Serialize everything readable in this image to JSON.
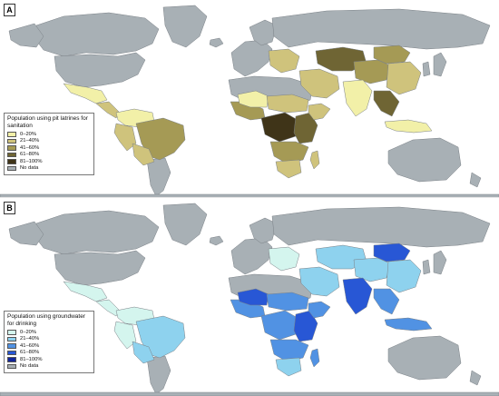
{
  "colors": {
    "ocean": "#ffffff",
    "no_data": "#a8b0b5",
    "outline": "#7a8086",
    "a": [
      "#f2f0a8",
      "#cfc37c",
      "#a59a55",
      "#6f6534",
      "#3f3418"
    ],
    "b": [
      "#d4f5ee",
      "#8ed2ee",
      "#5192e3",
      "#2857d5",
      "#12259a"
    ]
  },
  "panels": [
    {
      "tag": "A",
      "legend_title": "Population using pit latrines for sanitation",
      "legend_items": [
        "0–20%",
        "21–40%",
        "41–60%",
        "61–80%",
        "81–100%",
        "No data"
      ],
      "regions": [
        {
          "name": "mexico",
          "c": 0
        },
        {
          "name": "central-america",
          "c": 1
        },
        {
          "name": "colombia-venezuela",
          "c": 0
        },
        {
          "name": "peru-ecuador",
          "c": 1
        },
        {
          "name": "brazil",
          "c": 2
        },
        {
          "name": "bolivia-paraguay",
          "c": 1
        },
        {
          "name": "west-africa-coast",
          "c": 2
        },
        {
          "name": "west-africa-inland",
          "c": 0
        },
        {
          "name": "sahel",
          "c": 1
        },
        {
          "name": "central-africa",
          "c": 4
        },
        {
          "name": "east-africa",
          "c": 3
        },
        {
          "name": "horn-africa",
          "c": 1
        },
        {
          "name": "southern-africa",
          "c": 2
        },
        {
          "name": "south-africa",
          "c": 1
        },
        {
          "name": "madagascar",
          "c": 1
        },
        {
          "name": "middle-east",
          "c": 1
        },
        {
          "name": "central-asia",
          "c": 3
        },
        {
          "name": "mongolia",
          "c": 2
        },
        {
          "name": "china-west",
          "c": 2
        },
        {
          "name": "china-east",
          "c": 1
        },
        {
          "name": "india",
          "c": 0
        },
        {
          "name": "southeast-asia",
          "c": 3
        },
        {
          "name": "indonesia",
          "c": 0
        },
        {
          "name": "eastern-europe",
          "c": 1
        }
      ]
    },
    {
      "tag": "B",
      "legend_title": "Population using groundwater for drinking",
      "legend_items": [
        "0–20%",
        "21–40%",
        "41–60%",
        "61–80%",
        "81–100%",
        "No data"
      ],
      "regions": [
        {
          "name": "mexico",
          "c": 0
        },
        {
          "name": "central-america",
          "c": 0
        },
        {
          "name": "colombia-venezuela",
          "c": 0
        },
        {
          "name": "peru-ecuador",
          "c": 0
        },
        {
          "name": "brazil",
          "c": 1
        },
        {
          "name": "bolivia-paraguay",
          "c": 1
        },
        {
          "name": "west-africa-coast",
          "c": 2
        },
        {
          "name": "west-africa-inland",
          "c": 3
        },
        {
          "name": "sahel",
          "c": 2
        },
        {
          "name": "central-africa",
          "c": 2
        },
        {
          "name": "east-africa",
          "c": 3
        },
        {
          "name": "horn-africa",
          "c": 2
        },
        {
          "name": "southern-africa",
          "c": 2
        },
        {
          "name": "south-africa",
          "c": 1
        },
        {
          "name": "madagascar",
          "c": 2
        },
        {
          "name": "middle-east",
          "c": 1
        },
        {
          "name": "central-asia",
          "c": 1
        },
        {
          "name": "mongolia",
          "c": 3
        },
        {
          "name": "china-west",
          "c": 1
        },
        {
          "name": "china-east",
          "c": 1
        },
        {
          "name": "india",
          "c": 3
        },
        {
          "name": "southeast-asia",
          "c": 2
        },
        {
          "name": "indonesia",
          "c": 2
        },
        {
          "name": "eastern-europe",
          "c": 0
        }
      ]
    }
  ]
}
